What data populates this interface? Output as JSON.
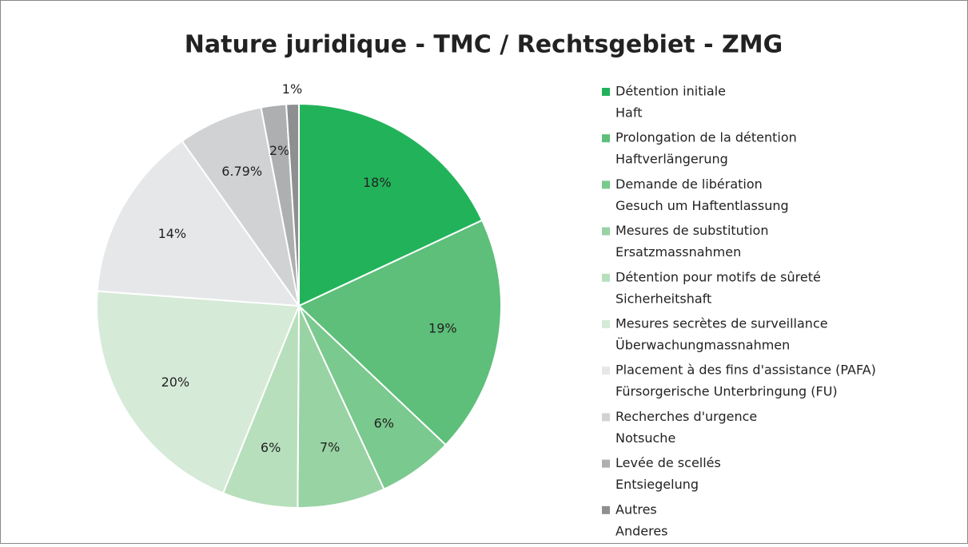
{
  "chart_data": {
    "type": "pie",
    "title": "Nature juridique - TMC / Rechtsgebiet - ZMG",
    "categories": [
      [
        "Détention initiale",
        "Haft"
      ],
      [
        "Prolongation de la détention",
        "Haftverlängerung"
      ],
      [
        "Demande de libération",
        "Gesuch um Haftentlassung"
      ],
      [
        "Mesures de substitution",
        "Ersatzmassnahmen"
      ],
      [
        "Détention pour motifs de sûreté",
        "Sicherheitshaft"
      ],
      [
        "Mesures secrètes de surveillance",
        "Überwachungmassnahmen"
      ],
      [
        "Placement à des fins d'assistance (PAFA)",
        "Fürsorgerische Unterbringung (FU)"
      ],
      [
        "Recherches d'urgence",
        "Notsuche"
      ],
      [
        "Levée de scellés",
        "Entsiegelung"
      ],
      [
        "Autres",
        "Anderes"
      ]
    ],
    "values": [
      18,
      19,
      6,
      7,
      6,
      20,
      14,
      6.79,
      2,
      1
    ],
    "value_labels": [
      "18%",
      "19%",
      "6%",
      "7%",
      "6%",
      "20%",
      "14%",
      "6.79%",
      "2%",
      "1%"
    ],
    "colors": [
      "#22b35a",
      "#5dbf79",
      "#7ac98e",
      "#98d3a3",
      "#b7dfbc",
      "#d5ead7",
      "#e6e7e9",
      "#d1d2d4",
      "#aeafb1",
      "#8e8f91"
    ]
  }
}
